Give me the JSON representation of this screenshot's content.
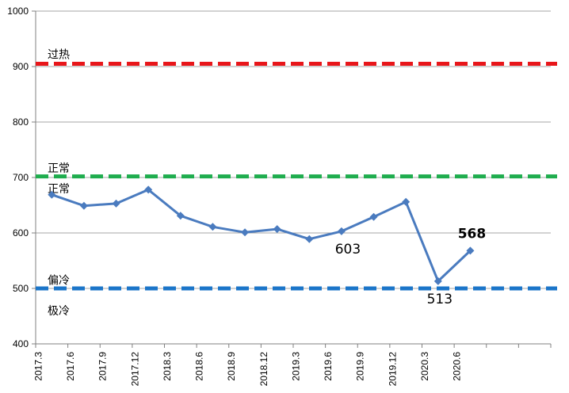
{
  "chart_data": {
    "type": "line",
    "categories": [
      "2017.3",
      "2017.6",
      "2017.9",
      "2017.12",
      "2018.3",
      "2018.6",
      "2018.9",
      "2018.12",
      "2019.3",
      "2019.6",
      "2019.9",
      "2019.12",
      "2020.3",
      "2020.6"
    ],
    "series": [
      {
        "values": [
          669,
          649,
          653,
          678,
          631,
          611,
          601,
          607,
          589,
          603,
          629,
          656,
          513,
          568
        ]
      }
    ],
    "ylim": [
      400,
      1000
    ],
    "yticks": [
      400,
      500,
      600,
      700,
      800,
      900,
      1000
    ],
    "grid": true,
    "reference_lines": [
      {
        "value": 905,
        "color": "#e8161a"
      },
      {
        "value": 702,
        "color": "#1fad4e"
      },
      {
        "value": 500,
        "color": "#1b75c9"
      }
    ],
    "zone_labels": [
      {
        "text": "过热",
        "value": 922
      },
      {
        "text": "正常",
        "value": 717
      },
      {
        "text": "正常",
        "value": 680
      },
      {
        "text": "偏冷",
        "value": 515
      },
      {
        "text": "极冷",
        "value": 460
      }
    ],
    "point_labels": [
      {
        "index": 9,
        "text": "603",
        "bold": false,
        "position": "below"
      },
      {
        "index": 12,
        "text": "513",
        "bold": false,
        "position": "below"
      },
      {
        "index": 13,
        "text": "568",
        "bold": true,
        "position": "above"
      }
    ],
    "line_color": "#4a7bbf",
    "extra_category_slots": 2
  }
}
